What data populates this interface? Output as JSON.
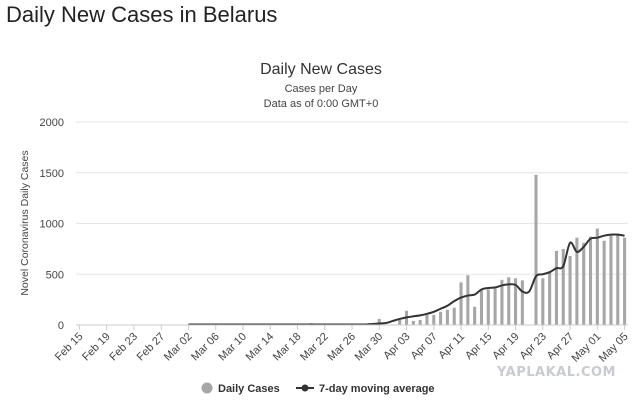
{
  "page": {
    "heading": "Daily New Cases in Belarus"
  },
  "watermark": "YAPLAKAL.COM",
  "colors": {
    "bar": "#a6a6a6",
    "line": "#333333",
    "grid": "#e6e6e6",
    "axis": "#cccccc"
  },
  "chart_data": {
    "type": "bar",
    "title": "Daily New Cases",
    "subtitle_lines": [
      "Cases per Day",
      "Data as of 0:00 GMT+0"
    ],
    "xlabel": "",
    "ylabel": "Novel Coronavirus Daily Cases",
    "ylim": [
      0,
      2000
    ],
    "yticks": [
      "0",
      "500",
      "1000",
      "1500",
      "2000"
    ],
    "grid": true,
    "legend": {
      "position": "bottom-center",
      "items": [
        "Daily Cases",
        "7-day moving average"
      ]
    },
    "xtick_labels": [
      "Feb 15",
      "Feb 19",
      "Feb 23",
      "Feb 27",
      "Mar 02",
      "Mar 06",
      "Mar 10",
      "Mar 14",
      "Mar 18",
      "Mar 22",
      "Mar 26",
      "Mar 30",
      "Apr 03",
      "Apr 07",
      "Apr 11",
      "Apr 15",
      "Apr 19",
      "Apr 23",
      "Apr 27",
      "May 01",
      "May 05"
    ],
    "categories": [
      "Feb 15",
      "Feb 16",
      "Feb 17",
      "Feb 18",
      "Feb 19",
      "Feb 20",
      "Feb 21",
      "Feb 22",
      "Feb 23",
      "Feb 24",
      "Feb 25",
      "Feb 26",
      "Feb 27",
      "Feb 28",
      "Feb 29",
      "Mar 01",
      "Mar 02",
      "Mar 03",
      "Mar 04",
      "Mar 05",
      "Mar 06",
      "Mar 07",
      "Mar 08",
      "Mar 09",
      "Mar 10",
      "Mar 11",
      "Mar 12",
      "Mar 13",
      "Mar 14",
      "Mar 15",
      "Mar 16",
      "Mar 17",
      "Mar 18",
      "Mar 19",
      "Mar 20",
      "Mar 21",
      "Mar 22",
      "Mar 23",
      "Mar 24",
      "Mar 25",
      "Mar 26",
      "Mar 27",
      "Mar 28",
      "Mar 29",
      "Mar 30",
      "Mar 31",
      "Apr 01",
      "Apr 02",
      "Apr 03",
      "Apr 04",
      "Apr 05",
      "Apr 06",
      "Apr 07",
      "Apr 08",
      "Apr 09",
      "Apr 10",
      "Apr 11",
      "Apr 12",
      "Apr 13",
      "Apr 14",
      "Apr 15",
      "Apr 16",
      "Apr 17",
      "Apr 18",
      "Apr 19",
      "Apr 20",
      "Apr 21",
      "Apr 22",
      "Apr 23",
      "Apr 24",
      "Apr 25",
      "Apr 26",
      "Apr 27",
      "Apr 28",
      "Apr 29",
      "Apr 30",
      "May 01",
      "May 02",
      "May 03",
      "May 04",
      "May 05"
    ],
    "series": [
      {
        "name": "Daily Cases",
        "type": "bar",
        "values": [
          0,
          0,
          0,
          0,
          0,
          0,
          0,
          0,
          0,
          0,
          0,
          0,
          0,
          1,
          0,
          0,
          0,
          5,
          0,
          0,
          0,
          0,
          0,
          0,
          0,
          3,
          0,
          0,
          0,
          12,
          0,
          2,
          15,
          0,
          18,
          0,
          5,
          0,
          4,
          10,
          0,
          8,
          0,
          15,
          60,
          0,
          0,
          50,
          140,
          40,
          50,
          100,
          100,
          130,
          150,
          170,
          420,
          490,
          180,
          340,
          350,
          360,
          445,
          470,
          460,
          440,
          0,
          1480,
          460,
          530,
          730,
          750,
          680,
          860,
          810,
          870,
          950,
          830,
          880,
          900,
          860
        ]
      },
      {
        "name": "7-day moving average",
        "type": "line",
        "values": [
          null,
          null,
          null,
          null,
          null,
          null,
          null,
          null,
          null,
          null,
          null,
          null,
          null,
          null,
          null,
          null,
          5,
          5,
          5,
          5,
          5,
          5,
          5,
          5,
          5,
          5,
          5,
          5,
          5,
          5,
          5,
          5,
          5,
          5,
          5,
          5,
          5,
          5,
          5,
          5,
          5,
          5,
          5,
          10,
          15,
          20,
          40,
          60,
          75,
          85,
          95,
          110,
          130,
          160,
          190,
          235,
          270,
          290,
          300,
          350,
          365,
          370,
          390,
          400,
          395,
          330,
          330,
          480,
          500,
          520,
          560,
          580,
          810,
          720,
          770,
          850,
          860,
          880,
          890,
          890,
          880
        ]
      }
    ]
  }
}
